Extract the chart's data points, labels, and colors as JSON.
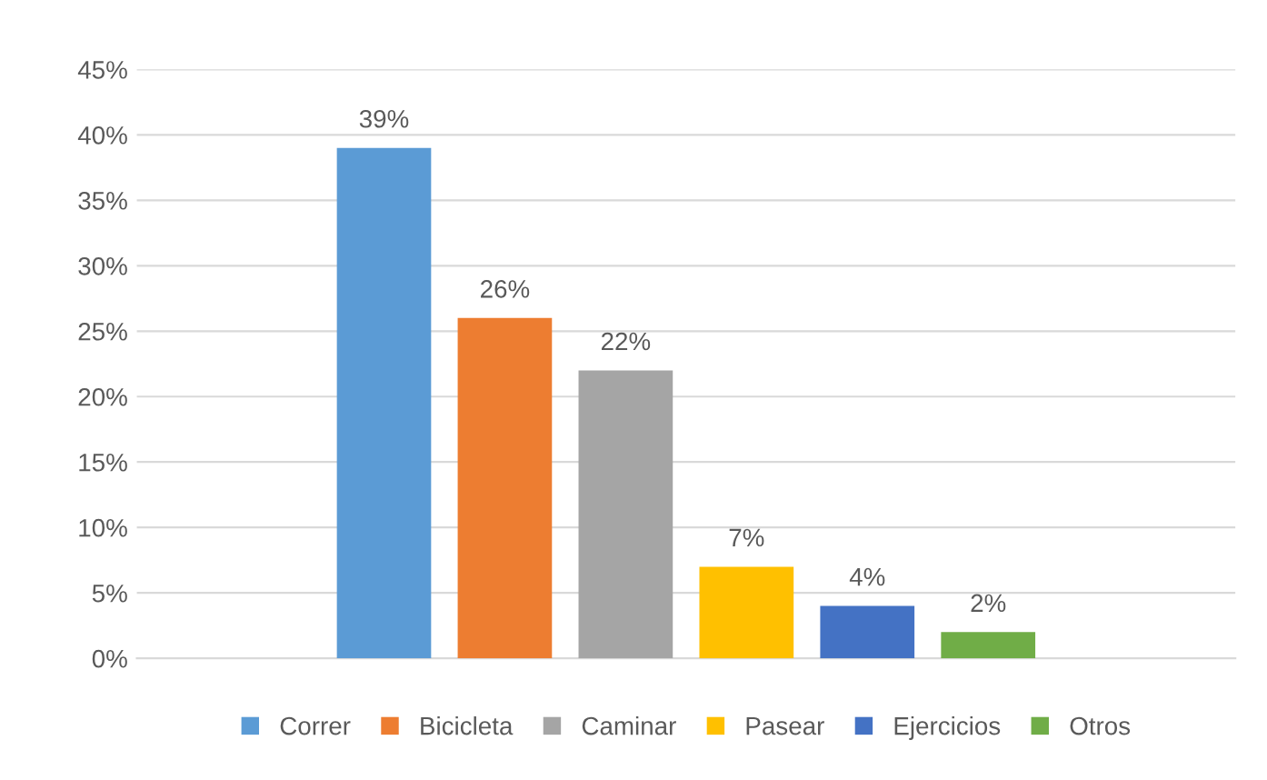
{
  "chart_data": {
    "type": "bar",
    "categories": [
      null
    ],
    "series": [
      {
        "name": "Correr",
        "color": "#5b9bd5",
        "values": [
          39
        ],
        "value_labels": [
          "39%"
        ]
      },
      {
        "name": "Bicicleta",
        "color": "#ed7d31",
        "values": [
          26
        ],
        "value_labels": [
          "26%"
        ]
      },
      {
        "name": "Caminar",
        "color": "#a5a5a5",
        "values": [
          22
        ],
        "value_labels": [
          "22%"
        ]
      },
      {
        "name": "Pasear",
        "color": "#ffc000",
        "values": [
          7
        ],
        "value_labels": [
          "7%"
        ]
      },
      {
        "name": "Ejercicios",
        "color": "#4472c4",
        "values": [
          4
        ],
        "value_labels": [
          "4%"
        ]
      },
      {
        "name": "Otros",
        "color": "#70ad47",
        "values": [
          2
        ],
        "value_labels": [
          "2%"
        ]
      }
    ],
    "ylim": [
      0,
      45
    ],
    "yticks": [
      {
        "value": 0,
        "label": "0%"
      },
      {
        "value": 5,
        "label": "5%"
      },
      {
        "value": 10,
        "label": "10%"
      },
      {
        "value": 15,
        "label": "15%"
      },
      {
        "value": 20,
        "label": "20%"
      },
      {
        "value": 25,
        "label": "25%"
      },
      {
        "value": 30,
        "label": "30%"
      },
      {
        "value": 35,
        "label": "35%"
      },
      {
        "value": 40,
        "label": "40%"
      },
      {
        "value": 45,
        "label": "45%"
      }
    ],
    "grid": "y",
    "legend": "bottom"
  }
}
